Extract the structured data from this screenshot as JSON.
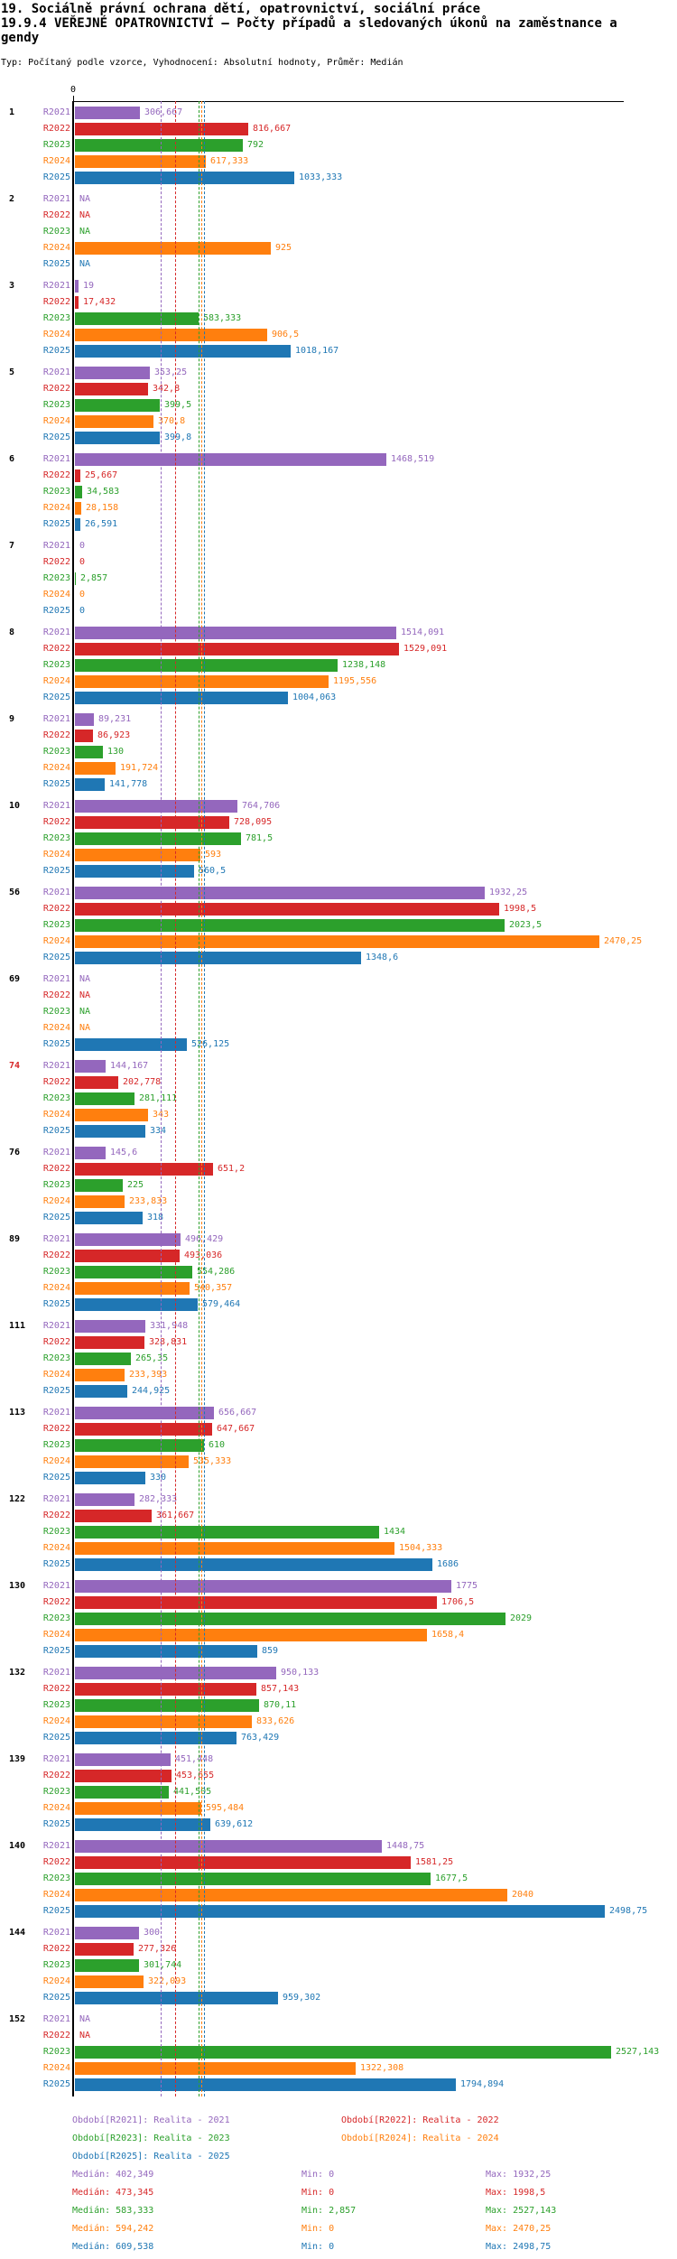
{
  "header": {
    "title_line1": "19. Sociálně právní ochrana dětí, opatrovnictví, sociální práce",
    "title_line2": "19.9.4 VEŘEJNÉ OPATROVNICTVÍ – Počty případů a sledovaných úkonů na zaměstnance a",
    "title_line3": "gendy",
    "subtitle": "Typ: Počítaný podle vzorce, Vyhodnocení: Absolutní hodnoty, Průměr: Medián"
  },
  "colors": {
    "R2021": "#9467bd",
    "R2022": "#d62728",
    "R2023": "#2ca02c",
    "R2024": "#ff7f0e",
    "R2025": "#1f77b4",
    "axis": "#000000",
    "highlight": "#d62728"
  },
  "labels": {
    "median": "Medián",
    "min": "Min",
    "max": "Max",
    "na": "NA"
  },
  "chart_data": {
    "type": "bar",
    "orientation": "horizontal",
    "decimal_separator": ",",
    "axis_zero_label": "0",
    "xlim": [
      0,
      2850
    ],
    "grid": false,
    "series_names": [
      "R2021",
      "R2022",
      "R2023",
      "R2024",
      "R2025"
    ],
    "median_lines": {
      "R2021": "402,349",
      "R2022": "473,345",
      "R2023": "583,333",
      "R2024": "594,242",
      "R2025": "609,538"
    },
    "groups": [
      {
        "label": "1",
        "highlight": false,
        "values": {
          "R2021": "306,667",
          "R2022": "816,667",
          "R2023": "792",
          "R2024": "617,333",
          "R2025": "1033,333"
        }
      },
      {
        "label": "2",
        "highlight": false,
        "values": {
          "R2021": "NA",
          "R2022": "NA",
          "R2023": "NA",
          "R2024": "925",
          "R2025": "NA"
        }
      },
      {
        "label": "3",
        "highlight": false,
        "values": {
          "R2021": "19",
          "R2022": "17,432",
          "R2023": "583,333",
          "R2024": "906,5",
          "R2025": "1018,167"
        }
      },
      {
        "label": "5",
        "highlight": false,
        "values": {
          "R2021": "353,25",
          "R2022": "342,8",
          "R2023": "399,5",
          "R2024": "370,8",
          "R2025": "399,8"
        }
      },
      {
        "label": "6",
        "highlight": false,
        "values": {
          "R2021": "1468,519",
          "R2022": "25,667",
          "R2023": "34,583",
          "R2024": "28,158",
          "R2025": "26,591"
        }
      },
      {
        "label": "7",
        "highlight": false,
        "values": {
          "R2021": "0",
          "R2022": "0",
          "R2023": "2,857",
          "R2024": "0",
          "R2025": "0"
        }
      },
      {
        "label": "8",
        "highlight": false,
        "values": {
          "R2021": "1514,091",
          "R2022": "1529,091",
          "R2023": "1238,148",
          "R2024": "1195,556",
          "R2025": "1004,063"
        }
      },
      {
        "label": "9",
        "highlight": false,
        "values": {
          "R2021": "89,231",
          "R2022": "86,923",
          "R2023": "130",
          "R2024": "191,724",
          "R2025": "141,778"
        }
      },
      {
        "label": "10",
        "highlight": false,
        "values": {
          "R2021": "764,706",
          "R2022": "728,095",
          "R2023": "781,5",
          "R2024": "593",
          "R2025": "560,5"
        }
      },
      {
        "label": "56",
        "highlight": false,
        "values": {
          "R2021": "1932,25",
          "R2022": "1998,5",
          "R2023": "2023,5",
          "R2024": "2470,25",
          "R2025": "1348,6"
        }
      },
      {
        "label": "69",
        "highlight": false,
        "values": {
          "R2021": "NA",
          "R2022": "NA",
          "R2023": "NA",
          "R2024": "NA",
          "R2025": "526,125"
        }
      },
      {
        "label": "74",
        "highlight": true,
        "values": {
          "R2021": "144,167",
          "R2022": "202,778",
          "R2023": "281,111",
          "R2024": "343",
          "R2025": "334"
        }
      },
      {
        "label": "76",
        "highlight": false,
        "values": {
          "R2021": "145,6",
          "R2022": "651,2",
          "R2023": "225",
          "R2024": "233,833",
          "R2025": "318"
        }
      },
      {
        "label": "89",
        "highlight": false,
        "values": {
          "R2021": "496,429",
          "R2022": "493,036",
          "R2023": "554,286",
          "R2024": "540,357",
          "R2025": "579,464"
        }
      },
      {
        "label": "111",
        "highlight": false,
        "values": {
          "R2021": "331,948",
          "R2022": "328,831",
          "R2023": "265,35",
          "R2024": "233,393",
          "R2025": "244,925"
        }
      },
      {
        "label": "113",
        "highlight": false,
        "values": {
          "R2021": "656,667",
          "R2022": "647,667",
          "R2023": "610",
          "R2024": "535,333",
          "R2025": "330"
        }
      },
      {
        "label": "122",
        "highlight": false,
        "values": {
          "R2021": "282,333",
          "R2022": "361,667",
          "R2023": "1434",
          "R2024": "1504,333",
          "R2025": "1686"
        }
      },
      {
        "label": "130",
        "highlight": false,
        "values": {
          "R2021": "1775",
          "R2022": "1706,5",
          "R2023": "2029",
          "R2024": "1658,4",
          "R2025": "859"
        }
      },
      {
        "label": "132",
        "highlight": false,
        "values": {
          "R2021": "950,133",
          "R2022": "857,143",
          "R2023": "870,11",
          "R2024": "833,626",
          "R2025": "763,429"
        }
      },
      {
        "label": "139",
        "highlight": false,
        "values": {
          "R2021": "451,448",
          "R2022": "453,655",
          "R2023": "441,505",
          "R2024": "595,484",
          "R2025": "639,612"
        }
      },
      {
        "label": "140",
        "highlight": false,
        "values": {
          "R2021": "1448,75",
          "R2022": "1581,25",
          "R2023": "1677,5",
          "R2024": "2040",
          "R2025": "2498,75"
        }
      },
      {
        "label": "144",
        "highlight": false,
        "values": {
          "R2021": "300",
          "R2022": "277,326",
          "R2023": "301,744",
          "R2024": "322,093",
          "R2025": "959,302"
        }
      },
      {
        "label": "152",
        "highlight": false,
        "values": {
          "R2021": "NA",
          "R2022": "NA",
          "R2023": "2527,143",
          "R2024": "1322,308",
          "R2025": "1794,894"
        }
      }
    ]
  },
  "legend": [
    {
      "series": "R2021",
      "text": "Období[R2021]: Realita - 2021",
      "row": 0,
      "col": 0
    },
    {
      "series": "R2022",
      "text": "Období[R2022]: Realita - 2022",
      "row": 0,
      "col": 1
    },
    {
      "series": "R2023",
      "text": "Období[R2023]: Realita - 2023",
      "row": 1,
      "col": 0
    },
    {
      "series": "R2024",
      "text": "Období[R2024]: Realita - 2024",
      "row": 1,
      "col": 1
    },
    {
      "series": "R2025",
      "text": "Období[R2025]: Realita - 2025",
      "row": 2,
      "col": 0
    }
  ],
  "stats": [
    {
      "series": "R2021",
      "median": "402,349",
      "min": "0",
      "max": "1932,25"
    },
    {
      "series": "R2022",
      "median": "473,345",
      "min": "0",
      "max": "1998,5"
    },
    {
      "series": "R2023",
      "median": "583,333",
      "min": "2,857",
      "max": "2527,143"
    },
    {
      "series": "R2024",
      "median": "594,242",
      "min": "0",
      "max": "2470,25"
    },
    {
      "series": "R2025",
      "median": "609,538",
      "min": "0",
      "max": "2498,75"
    }
  ]
}
